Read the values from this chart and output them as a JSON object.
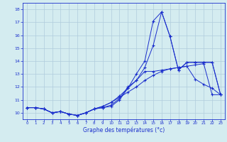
{
  "title": "Graphe des températures (°c)",
  "xlim": [
    -0.5,
    23.5
  ],
  "ylim": [
    9.5,
    18.5
  ],
  "xticks": [
    0,
    1,
    2,
    3,
    4,
    5,
    6,
    7,
    8,
    9,
    10,
    11,
    12,
    13,
    14,
    15,
    16,
    17,
    18,
    19,
    20,
    21,
    22,
    23
  ],
  "yticks": [
    10,
    11,
    12,
    13,
    14,
    15,
    16,
    17,
    18
  ],
  "bg_color": "#d4ecf0",
  "line_color": "#1a2ecc",
  "grid_color": "#b0ccdd",
  "line1_y": [
    10.4,
    10.4,
    10.3,
    10.0,
    10.1,
    9.9,
    9.8,
    10.0,
    10.3,
    10.4,
    10.5,
    11.0,
    11.9,
    13.0,
    14.0,
    17.1,
    17.8,
    15.9,
    13.3,
    13.9,
    13.9,
    13.9,
    13.9,
    11.4
  ],
  "line2_y": [
    10.4,
    10.4,
    10.3,
    10.0,
    10.1,
    9.9,
    9.8,
    10.0,
    10.3,
    10.4,
    10.6,
    11.1,
    12.0,
    12.5,
    13.5,
    15.2,
    17.8,
    15.9,
    13.3,
    13.9,
    13.9,
    13.9,
    13.9,
    11.4
  ],
  "line3_y": [
    10.4,
    10.4,
    10.3,
    10.0,
    10.1,
    9.9,
    9.8,
    10.0,
    10.3,
    10.5,
    10.8,
    11.3,
    11.9,
    12.5,
    13.2,
    13.2,
    13.3,
    13.4,
    13.5,
    13.6,
    12.6,
    12.2,
    11.9,
    11.4
  ],
  "line4_y": [
    10.4,
    10.4,
    10.3,
    10.0,
    10.1,
    9.9,
    9.8,
    10.0,
    10.3,
    10.5,
    10.8,
    11.2,
    11.6,
    12.0,
    12.5,
    12.9,
    13.2,
    13.4,
    13.5,
    13.6,
    13.7,
    13.8,
    11.4,
    11.4
  ]
}
